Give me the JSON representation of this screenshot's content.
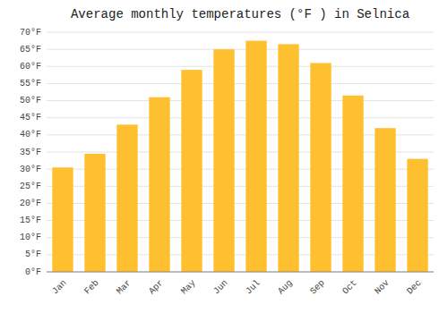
{
  "chart_data": {
    "type": "bar",
    "title": "Average monthly temperatures (°F ) in Selnica",
    "categories": [
      "Jan",
      "Feb",
      "Mar",
      "Apr",
      "May",
      "Jun",
      "Jul",
      "Aug",
      "Sep",
      "Oct",
      "Nov",
      "Dec"
    ],
    "values": [
      30.5,
      34.5,
      43.0,
      51.0,
      59.0,
      65.0,
      67.5,
      66.5,
      61.0,
      51.5,
      42.0,
      33.0
    ],
    "color": "#FFC030",
    "ylim": [
      0,
      70
    ],
    "yticks": [
      {
        "value": 0,
        "label": "0°F"
      },
      {
        "value": 5,
        "label": "5°F"
      },
      {
        "value": 10,
        "label": "10°F"
      },
      {
        "value": 15,
        "label": "15°F"
      },
      {
        "value": 20,
        "label": "20°F"
      },
      {
        "value": 25,
        "label": "25°F"
      },
      {
        "value": 30,
        "label": "30°F"
      },
      {
        "value": 35,
        "label": "35°F"
      },
      {
        "value": 40,
        "label": "40°F"
      },
      {
        "value": 45,
        "label": "45°F"
      },
      {
        "value": 50,
        "label": "50°F"
      },
      {
        "value": 55,
        "label": "55°F"
      },
      {
        "value": 60,
        "label": "60°F"
      },
      {
        "value": 65,
        "label": "65°F"
      },
      {
        "value": 70,
        "label": "70°F"
      }
    ],
    "grid": true
  }
}
